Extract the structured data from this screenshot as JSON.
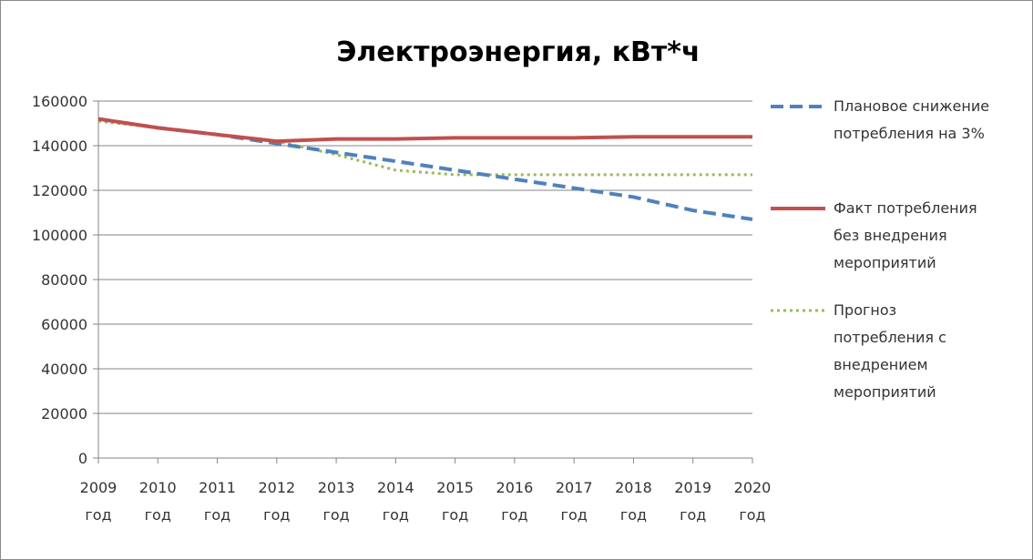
{
  "chart_data": {
    "type": "line",
    "title": "Электроэнергия, кВт*ч",
    "xlabel": "",
    "ylabel": "",
    "categories": [
      [
        "2009",
        "год"
      ],
      [
        "2010",
        "год"
      ],
      [
        "2011",
        "год"
      ],
      [
        "2012",
        "год"
      ],
      [
        "2013",
        "год"
      ],
      [
        "2014",
        "год"
      ],
      [
        "2015",
        "год"
      ],
      [
        "2016",
        "год"
      ],
      [
        "2017",
        "год"
      ],
      [
        "2018",
        "год"
      ],
      [
        "2019",
        "год"
      ],
      [
        "2020",
        "год"
      ]
    ],
    "y_ticks": [
      "0",
      "20000",
      "40000",
      "60000",
      "80000",
      "100000",
      "120000",
      "140000",
      "160000"
    ],
    "ylim": [
      0,
      160000
    ],
    "grid": true,
    "legend_position": "right",
    "series": [
      {
        "name_lines": [
          "Плановое снижение",
          "потребления  на 3%"
        ],
        "color": "#4f81bd",
        "style": "dashed",
        "values": [
          152000,
          148000,
          145000,
          141000,
          137000,
          133000,
          129000,
          125000,
          121000,
          117000,
          111000,
          107000
        ]
      },
      {
        "name_lines": [
          "Факт потребления",
          "без внедрения",
          "мероприятий"
        ],
        "color": "#c0504d",
        "style": "solid",
        "values": [
          152000,
          148000,
          145000,
          142000,
          143000,
          143000,
          143500,
          143500,
          143500,
          144000,
          144000,
          144000
        ]
      },
      {
        "name_lines": [
          "Прогноз",
          "потребления  с",
          "внедрением",
          "мероприятий"
        ],
        "color": "#9bbb59",
        "style": "dotted",
        "values": [
          151000,
          148000,
          145000,
          142000,
          136000,
          129000,
          127000,
          127000,
          127000,
          127000,
          127000,
          127000
        ]
      }
    ]
  }
}
